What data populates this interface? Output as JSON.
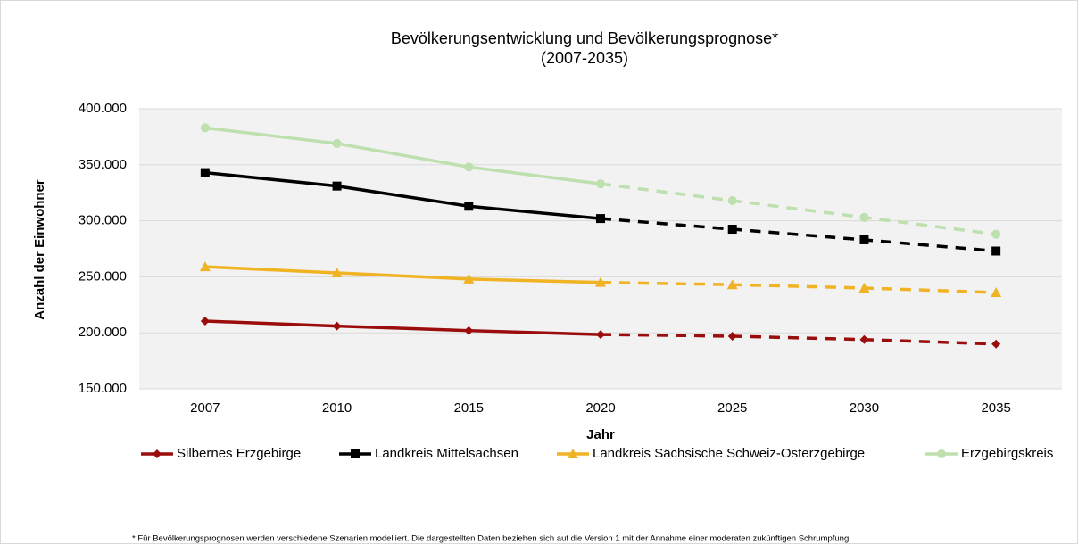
{
  "chart_data": {
    "type": "line",
    "title": "Bevölkerungsentwicklung und Bevölkerungsprognose*",
    "subtitle": "(2007-2035)",
    "x_label": "Jahr",
    "y_label": "Anzahl der Einwohner",
    "categories": [
      "2007",
      "2010",
      "2015",
      "2020",
      "2025",
      "2030",
      "2035"
    ],
    "forecast_start": "2020",
    "series": [
      {
        "name": "Silbernes Erzgebirge",
        "color": "#9b0d0d",
        "marker": "diamond",
        "values": [
          210500,
          206000,
          202000,
          198500,
          197000,
          194000,
          190000
        ]
      },
      {
        "name": "Landkreis Mittelsachsen",
        "color": "#000000",
        "marker": "square",
        "values": [
          343000,
          331000,
          313000,
          302000,
          292500,
          283000,
          273000
        ]
      },
      {
        "name": "Landkreis Sächsische Schweiz-Osterzgebirge",
        "color": "#f0b323",
        "marker": "triangle",
        "values": [
          259000,
          253500,
          248000,
          245000,
          243000,
          240000,
          236000
        ]
      },
      {
        "name": "Erzgebirgskreis",
        "color": "#bde0ae",
        "marker": "circle",
        "values": [
          383000,
          369000,
          348000,
          333000,
          318000,
          303000,
          288000
        ]
      }
    ],
    "ylim": [
      150000,
      400000
    ],
    "yticks": [
      {
        "value": 150000,
        "label": "150.000"
      },
      {
        "value": 200000,
        "label": "200.000"
      },
      {
        "value": 250000,
        "label": "250.000"
      },
      {
        "value": 300000,
        "label": "300.000"
      },
      {
        "value": 350000,
        "label": "350.000"
      },
      {
        "value": 400000,
        "label": "400.000"
      }
    ],
    "grid": true,
    "legend": "bottom",
    "footnote": "* Für Bevölkerungsprognosen werden verschiedene Szenarien modelliert. Die dargestellten Daten beziehen sich auf die Version 1 mit der Annahme einer moderaten zukünftigen Schrumpfung."
  }
}
